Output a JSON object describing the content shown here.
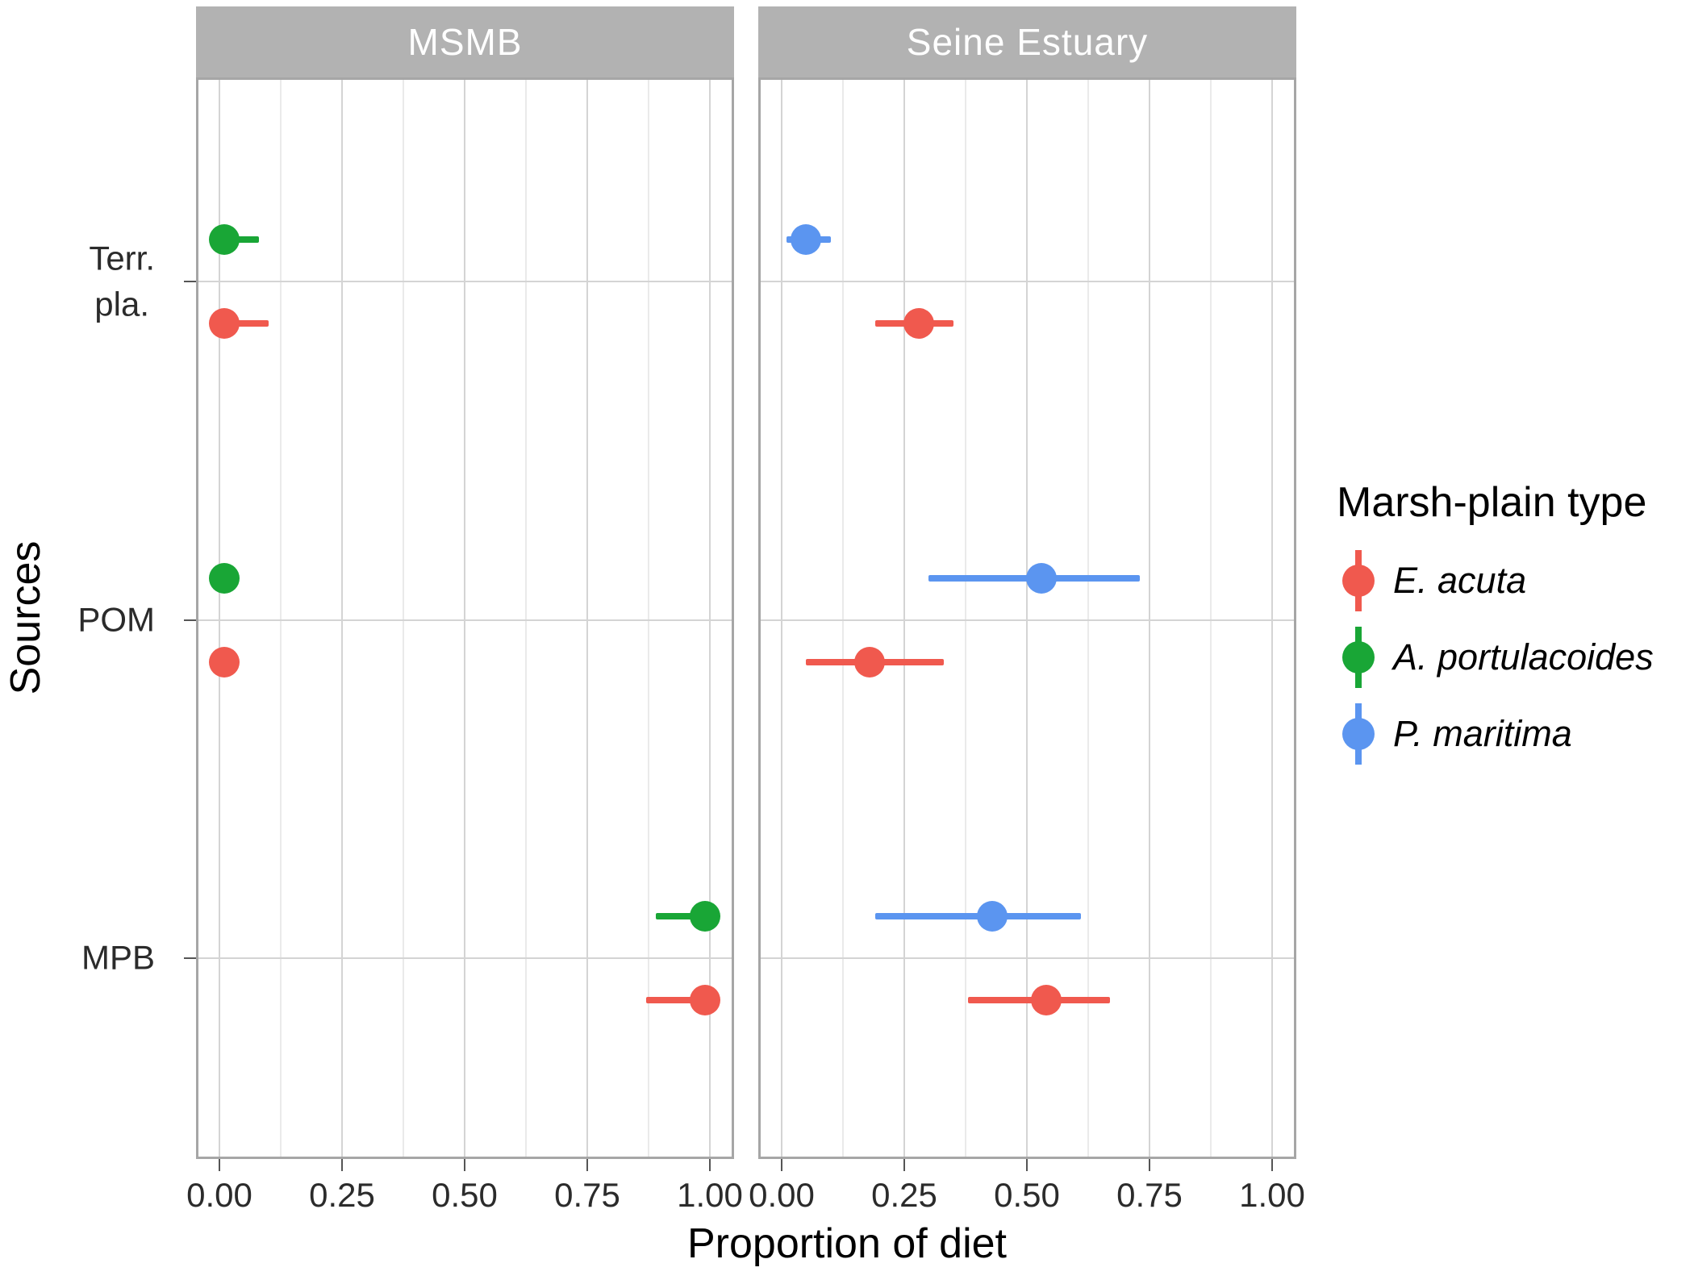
{
  "strips": [
    "MSMB",
    "Seine Estuary"
  ],
  "x_axis": {
    "title": "Proportion of diet",
    "tick_labels": [
      "0.00",
      "0.25",
      "0.50",
      "0.75",
      "1.00"
    ]
  },
  "y_axis": {
    "title": "Sources",
    "category_display_labels": [
      "Terr.\npla.",
      "POM",
      "MPB"
    ]
  },
  "legend": {
    "title": "Marsh-plain type",
    "entries": [
      {
        "label": "E. acuta",
        "color": "#f0594e"
      },
      {
        "label": "A. portulacoides",
        "color": "#19a636"
      },
      {
        "label": "P. maritima",
        "color": "#5b95f0"
      }
    ]
  },
  "chart_data": {
    "type": "scatter",
    "subtype": "pointrange-dotplot-with-error-bars",
    "facets": [
      "MSMB",
      "Seine Estuary"
    ],
    "categories": [
      "Terr. pla.",
      "POM",
      "MPB"
    ],
    "xlabel": "Proportion of diet",
    "ylabel": "Sources",
    "x_domain": [
      0,
      1
    ],
    "x_ticks": [
      0,
      0.25,
      0.5,
      0.75,
      1
    ],
    "x_minor_ticks": [
      0.125,
      0.375,
      0.625,
      0.875
    ],
    "grid": true,
    "legend_title": "Marsh-plain type",
    "legend_position": "right",
    "series": [
      {
        "name": "E. acuta",
        "color": "#f0594e"
      },
      {
        "name": "A. portulacoides",
        "color": "#19a636"
      },
      {
        "name": "P. maritima",
        "color": "#5b95f0"
      }
    ],
    "points": [
      {
        "facet": "MSMB",
        "category": "Terr. pla.",
        "series": "A. portulacoides",
        "mean": 0.01,
        "lower": 0.0,
        "upper": 0.08
      },
      {
        "facet": "MSMB",
        "category": "Terr. pla.",
        "series": "E. acuta",
        "mean": 0.01,
        "lower": 0.0,
        "upper": 0.1
      },
      {
        "facet": "MSMB",
        "category": "POM",
        "series": "A. portulacoides",
        "mean": 0.01,
        "lower": 0.0,
        "upper": 0.02
      },
      {
        "facet": "MSMB",
        "category": "POM",
        "series": "E. acuta",
        "mean": 0.01,
        "lower": 0.0,
        "upper": 0.02
      },
      {
        "facet": "MSMB",
        "category": "MPB",
        "series": "A. portulacoides",
        "mean": 0.99,
        "lower": 0.89,
        "upper": 1.0
      },
      {
        "facet": "MSMB",
        "category": "MPB",
        "series": "E. acuta",
        "mean": 0.99,
        "lower": 0.87,
        "upper": 1.0
      },
      {
        "facet": "Seine Estuary",
        "category": "Terr. pla.",
        "series": "P. maritima",
        "mean": 0.05,
        "lower": 0.01,
        "upper": 0.1
      },
      {
        "facet": "Seine Estuary",
        "category": "Terr. pla.",
        "series": "E. acuta",
        "mean": 0.28,
        "lower": 0.19,
        "upper": 0.35
      },
      {
        "facet": "Seine Estuary",
        "category": "POM",
        "series": "P. maritima",
        "mean": 0.53,
        "lower": 0.3,
        "upper": 0.73
      },
      {
        "facet": "Seine Estuary",
        "category": "POM",
        "series": "E. acuta",
        "mean": 0.18,
        "lower": 0.05,
        "upper": 0.33
      },
      {
        "facet": "Seine Estuary",
        "category": "MPB",
        "series": "P. maritima",
        "mean": 0.43,
        "lower": 0.19,
        "upper": 0.61
      },
      {
        "facet": "Seine Estuary",
        "category": "MPB",
        "series": "E. acuta",
        "mean": 0.54,
        "lower": 0.38,
        "upper": 0.67
      }
    ]
  }
}
